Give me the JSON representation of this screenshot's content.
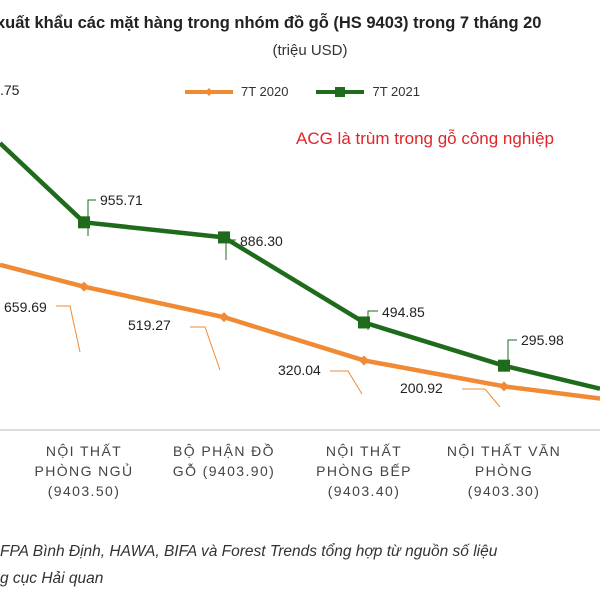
{
  "header": {
    "title": "xuất khẩu các mặt hàng trong nhóm đồ gỗ (HS 9403) trong 7 tháng 20",
    "subtitle": "(triệu USD)"
  },
  "annotation": "ACG là trùm trong gỗ công nghiệp",
  "source": {
    "line1": "FPA Bình Định, HAWA, BIFA và Forest Trends tổng hợp từ nguồn số liệu",
    "line2": "g cục Hải quan"
  },
  "colors": {
    "series_2020": "#f08a34",
    "series_2021": "#1f6b1c",
    "axis": "#b8b8b8"
  },
  "chart_data": {
    "type": "line",
    "title": "xuất khẩu các mặt hàng trong nhóm đồ gỗ (HS 9403) trong 7 tháng 20",
    "ylabel": "(triệu USD)",
    "legend_position": "top",
    "grid": false,
    "categories": [
      {
        "lines": [
          "NỘI THẤT",
          "PHÒNG NGỦ",
          "(9403.50)"
        ]
      },
      {
        "lines": [
          "BỘ PHẬN ĐỒ",
          "GỖ (9403.90)"
        ]
      },
      {
        "lines": [
          "NỘI THẤT",
          "PHÒNG BẾP",
          "(9403.40)"
        ]
      },
      {
        "lines": [
          "NỘI THẤT VĂN",
          "PHÒNG",
          "(9403.30)"
        ]
      }
    ],
    "series": [
      {
        "name": "7T 2020",
        "values": [
          659.69,
          519.27,
          320.04,
          200.92
        ],
        "labels": [
          "659.69",
          "519.27",
          "320.04",
          "200.92"
        ],
        "edge_left_value": 760,
        "edge_right_value": 145,
        "edge_left_label": ""
      },
      {
        "name": "7T 2021",
        "values": [
          955.71,
          886.3,
          494.85,
          295.98
        ],
        "labels": [
          "955.71",
          "886.30",
          "494.85",
          "295.98"
        ],
        "edge_left_value": 1320,
        "edge_right_value": 190,
        "edge_left_label": ".75"
      }
    ]
  }
}
